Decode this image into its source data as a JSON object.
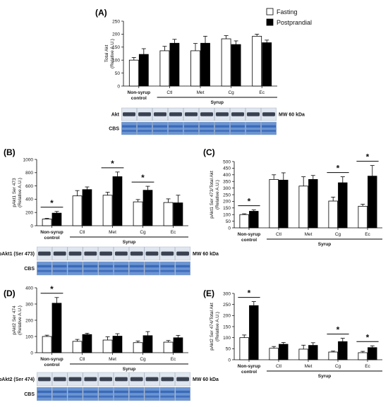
{
  "legend": {
    "fasting": "Fasting",
    "postprandial": "Postprandial"
  },
  "colors": {
    "fasting": "#ffffff",
    "postprandial": "#000000",
    "blot_bg": "#6b95d3",
    "blot_band": "#1d2535"
  },
  "chart_data": [
    {
      "panel": "(A)",
      "type": "bar",
      "ylabel": "Total Akt\n(Relative A.U.)",
      "ylim": [
        0,
        250
      ],
      "yticks": [
        0,
        50,
        100,
        150,
        200,
        250
      ],
      "categories": [
        "Non-syrup\ncontrol",
        "Ctl",
        "Met",
        "Cg",
        "Ec"
      ],
      "group_label": "Syrup",
      "series": [
        {
          "name": "Fasting",
          "values": [
            100,
            136,
            136,
            182,
            192
          ],
          "errors": [
            10,
            17,
            28,
            12,
            8
          ]
        },
        {
          "name": "Postprandial",
          "values": [
            122,
            165,
            165,
            160,
            167
          ],
          "errors": [
            22,
            15,
            27,
            14,
            10
          ]
        }
      ],
      "significance": [],
      "blot": {
        "bands": [
          "Akt",
          "CBS"
        ],
        "mw": "MW 60 kDa"
      }
    },
    {
      "panel": "(B)",
      "type": "bar",
      "ylabel": "pAkt1 Ser 473\n(Relative A.U.)",
      "ylim": [
        0,
        1000
      ],
      "yticks": [
        0,
        200,
        400,
        600,
        800,
        1000
      ],
      "categories": [
        "Non-syrup\ncontrol",
        "Ctl",
        "Met",
        "Cg",
        "Ec"
      ],
      "group_label": "Syrup",
      "series": [
        {
          "name": "Fasting",
          "values": [
            100,
            450,
            460,
            360,
            350
          ],
          "errors": [
            10,
            80,
            45,
            35,
            55
          ]
        },
        {
          "name": "Postprandial",
          "values": [
            190,
            545,
            740,
            535,
            345
          ],
          "errors": [
            25,
            40,
            70,
            60,
            115
          ]
        }
      ],
      "significance": [
        0,
        2,
        3
      ],
      "blot": {
        "bands": [
          "pAkt1 (Ser 473)",
          "CBS"
        ],
        "mw": "MW 60 kDa"
      }
    },
    {
      "panel": "(C)",
      "type": "bar",
      "ylabel": "pAkt1 Ser 473/Total Akt\n(Relative A.U.)",
      "ylim": [
        0,
        500
      ],
      "yticks": [
        0,
        50,
        100,
        150,
        200,
        250,
        300,
        350,
        400,
        450,
        500
      ],
      "categories": [
        "Non-syrup\ncontrol",
        "Ctl",
        "Met",
        "Cg",
        "Ec"
      ],
      "group_label": "Syrup",
      "series": [
        {
          "name": "Fasting",
          "values": [
            100,
            365,
            315,
            202,
            163
          ],
          "errors": [
            6,
            35,
            70,
            30,
            15
          ]
        },
        {
          "name": "Postprandial",
          "values": [
            125,
            360,
            365,
            340,
            390
          ],
          "errors": [
            10,
            55,
            30,
            45,
            80
          ]
        }
      ],
      "significance": [
        0,
        3,
        4
      ]
    },
    {
      "panel": "(D)",
      "type": "bar",
      "ylabel": "pAkt2 Ser 474\n(Relative A.U.)",
      "ylim": [
        0,
        400
      ],
      "yticks": [
        0,
        100,
        200,
        300,
        400
      ],
      "categories": [
        "Non-syrup\ncontrol",
        "Ctl",
        "Met",
        "Cg",
        "Ec"
      ],
      "group_label": "Syrup",
      "series": [
        {
          "name": "Fasting",
          "values": [
            100,
            70,
            78,
            62,
            65
          ],
          "errors": [
            8,
            12,
            20,
            10,
            10
          ]
        },
        {
          "name": "Postprandial",
          "values": [
            305,
            112,
            102,
            105,
            92
          ],
          "errors": [
            35,
            8,
            15,
            25,
            15
          ]
        }
      ],
      "significance": [
        0
      ],
      "blot": {
        "bands": [
          "pAkt2 (Ser 474)",
          "CBS"
        ],
        "mw": "MW 60 kDa"
      }
    },
    {
      "panel": "(E)",
      "type": "bar",
      "ylabel": "pAkt2 Ser 474/Total Akt\n(Relative A.U.)",
      "ylim": [
        0,
        300
      ],
      "yticks": [
        0,
        50,
        100,
        150,
        200,
        250,
        300
      ],
      "categories": [
        "Non-syrup\ncontrol",
        "Ctl",
        "Met",
        "Cg",
        "Ec"
      ],
      "group_label": "Syrup",
      "series": [
        {
          "name": "Fasting",
          "values": [
            100,
            52,
            48,
            35,
            32
          ],
          "errors": [
            12,
            8,
            18,
            4,
            6
          ]
        },
        {
          "name": "Postprandial",
          "values": [
            245,
            70,
            65,
            82,
            55
          ],
          "errors": [
            18,
            8,
            12,
            15,
            8
          ]
        }
      ],
      "significance": [
        0,
        3,
        4
      ]
    }
  ]
}
